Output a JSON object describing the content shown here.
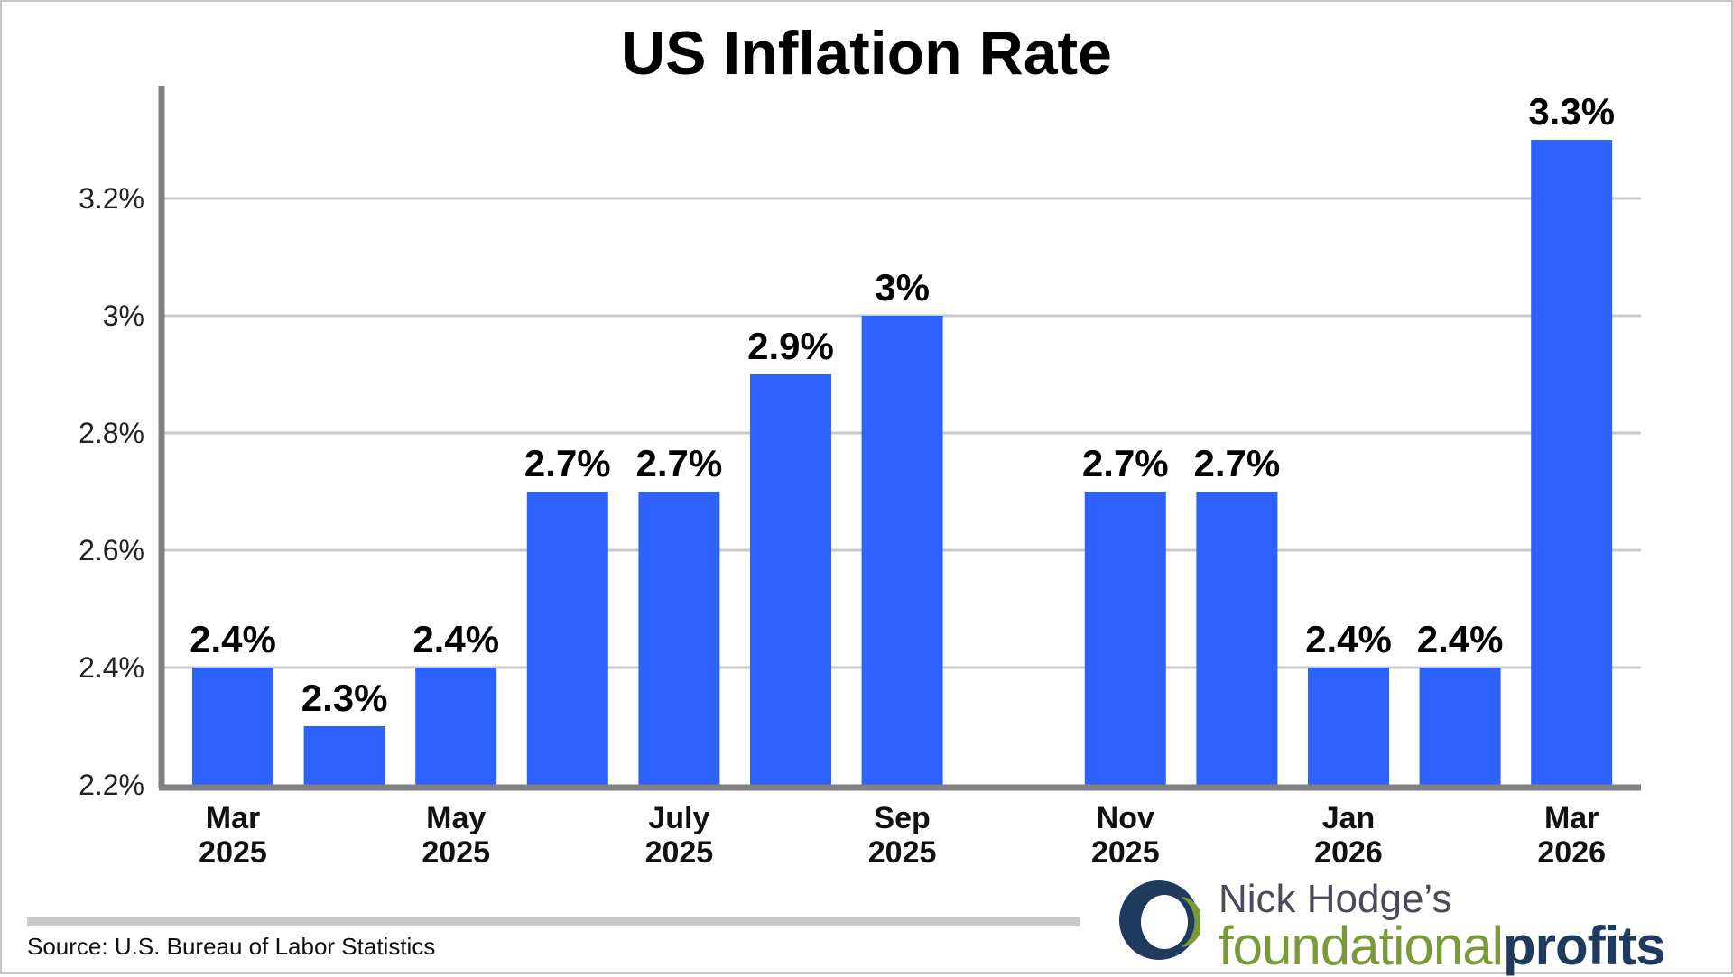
{
  "title": "US Inflation Rate",
  "source": "Source: U.S. Bureau of Labor Statistics",
  "logo": {
    "line1": "Nick Hodge’s",
    "word1": "foundational",
    "word2": "profits"
  },
  "colors": {
    "bar": "#2e62fd",
    "grid": "#c8c8c8",
    "axis": "#808080",
    "logo_green": "#7a9a3a",
    "logo_navy": "#1f3a5c"
  },
  "chart_data": {
    "type": "bar",
    "title": "US Inflation Rate",
    "xlabel": "",
    "ylabel": "",
    "ylim": [
      2.2,
      3.4
    ],
    "grid": true,
    "yticks": [
      2.2,
      2.4,
      2.6,
      2.8,
      3.0,
      3.2
    ],
    "ytick_labels": [
      "2.2%",
      "2.4%",
      "2.6%",
      "2.8%",
      "3%",
      "3.2%"
    ],
    "categories": [
      {
        "label": [
          "Mar",
          "2025"
        ],
        "value": 2.4,
        "value_label": "2.4%"
      },
      {
        "label": [],
        "value": 2.3,
        "value_label": "2.3%"
      },
      {
        "label": [
          "May",
          "2025"
        ],
        "value": 2.4,
        "value_label": "2.4%"
      },
      {
        "label": [],
        "value": 2.7,
        "value_label": "2.7%"
      },
      {
        "label": [
          "July",
          "2025"
        ],
        "value": 2.7,
        "value_label": "2.7%"
      },
      {
        "label": [],
        "value": 2.9,
        "value_label": "2.9%"
      },
      {
        "label": [
          "Sep",
          "2025"
        ],
        "value": 3.0,
        "value_label": "3%"
      },
      {
        "label": [],
        "value": null,
        "value_label": ""
      },
      {
        "label": [
          "Nov",
          "2025"
        ],
        "value": 2.7,
        "value_label": "2.7%"
      },
      {
        "label": [],
        "value": 2.7,
        "value_label": "2.7%"
      },
      {
        "label": [
          "Jan",
          "2026"
        ],
        "value": 2.4,
        "value_label": "2.4%"
      },
      {
        "label": [],
        "value": 2.4,
        "value_label": "2.4%"
      },
      {
        "label": [
          "Mar",
          "2026"
        ],
        "value": 3.3,
        "value_label": "3.3%"
      }
    ]
  }
}
